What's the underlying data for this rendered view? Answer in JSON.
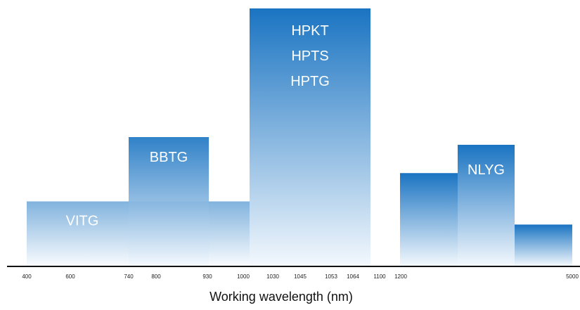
{
  "chart_data": {
    "type": "bar",
    "xlabel": "Working wavelength (nm)",
    "ticks": [
      "400",
      "600",
      "740",
      "800",
      "930",
      "1000",
      "1030",
      "1045",
      "1053",
      "1064",
      "1100",
      "1200",
      "5000"
    ],
    "bars": [
      {
        "name": "VITG",
        "labels": [
          "VITG"
        ],
        "from": "400",
        "to": "1030",
        "value": 25,
        "opacity": 0.55
      },
      {
        "name": "BBTG",
        "labels": [
          "BBTG"
        ],
        "from": "740",
        "to": "930",
        "value": 50,
        "opacity": 0.9
      },
      {
        "name": "HPKT/HPTS/HPTG",
        "labels": [
          "HPKT",
          "HPTS",
          "HPTG"
        ],
        "from": "1000",
        "to": "1100",
        "value": 100,
        "opacity": 1.0
      },
      {
        "name": "NLYG-1",
        "labels": [],
        "from": "1200",
        "to": "1200-b",
        "value": 36,
        "opacity": 1.0
      },
      {
        "name": "NLYG-2",
        "labels": [
          "NLYG"
        ],
        "from": "1200-b",
        "to": "1200-c",
        "value": 47,
        "opacity": 1.0
      },
      {
        "name": "NLYG-3",
        "labels": [],
        "from": "1200-c",
        "to": "5000",
        "value": 16,
        "opacity": 1.0
      }
    ],
    "ylim": [
      0,
      100
    ],
    "grid": false,
    "legend": "none",
    "colors": {
      "top": "#1a74c2",
      "bottom": "#f3f8fd",
      "axis": "#111111"
    }
  }
}
